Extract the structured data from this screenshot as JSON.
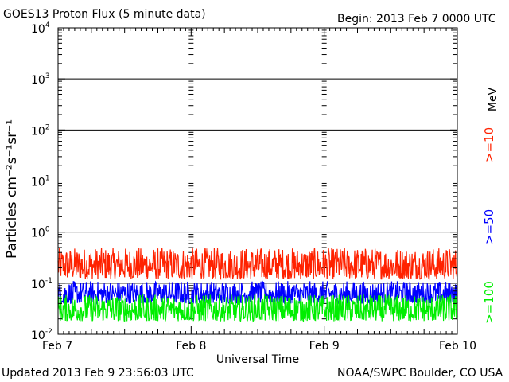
{
  "header": {
    "title": "GOES13 Proton Flux (5 minute data)",
    "begin": "Begin: 2013 Feb 7 0000 UTC"
  },
  "footer": {
    "updated": "Updated 2013 Feb  9 23:56:03 UTC",
    "source": "NOAA/SWPC Boulder, CO USA"
  },
  "chart_data": {
    "type": "line",
    "xlabel": "Universal Time",
    "ylabel": "Particles cm⁻²s⁻¹sr⁻¹",
    "yscale": "log",
    "ylim": [
      0.01,
      10000
    ],
    "xlim": [
      "2013-02-07",
      "2013-02-10"
    ],
    "x_ticks": [
      "Feb 7",
      "Feb 8",
      "Feb 9",
      "Feb 10"
    ],
    "y_ticks": [
      {
        "base": "10",
        "exp": "-2"
      },
      {
        "base": "10",
        "exp": "-1"
      },
      {
        "base": "10",
        "exp": "0"
      },
      {
        "base": "10",
        "exp": "1"
      },
      {
        "base": "10",
        "exp": "2"
      },
      {
        "base": "10",
        "exp": "3"
      },
      {
        "base": "10",
        "exp": "4"
      }
    ],
    "unit_label": "MeV",
    "threshold_lines": [
      {
        "value": 10,
        "style": "dashed"
      }
    ],
    "series": [
      {
        "name": ">=10",
        "color": "#ff2200",
        "typical_range": [
          0.12,
          0.5
        ]
      },
      {
        "name": ">=50",
        "color": "#0000ff",
        "typical_range": [
          0.04,
          0.11
        ]
      },
      {
        "name": ">=100",
        "color": "#00ee00",
        "typical_range": [
          0.018,
          0.06
        ]
      }
    ]
  }
}
